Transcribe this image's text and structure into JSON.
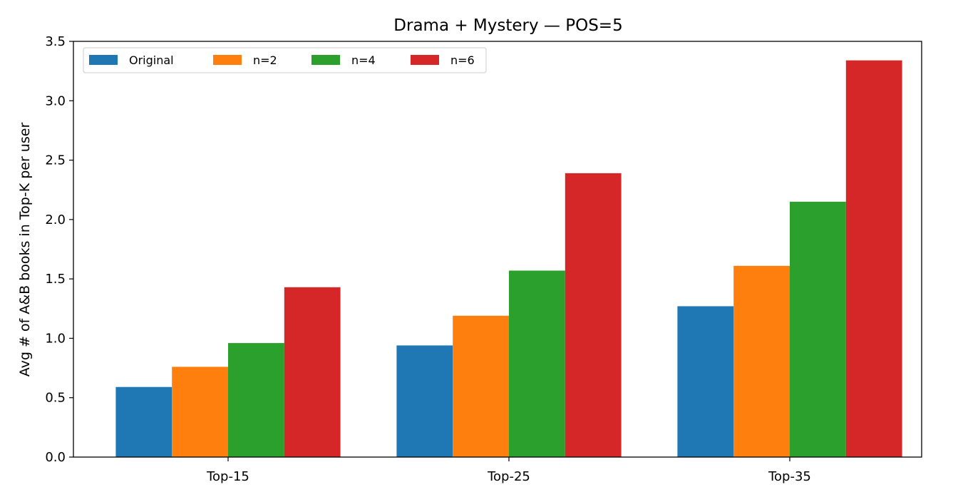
{
  "chart_data": {
    "type": "bar",
    "title": "Drama + Mystery — POS=5",
    "xlabel": "",
    "ylabel": "Avg # of A&B books in Top-K per user",
    "categories": [
      "Top-15",
      "Top-25",
      "Top-35"
    ],
    "series": [
      {
        "name": "Original",
        "color": "#1f77b4",
        "values": [
          0.59,
          0.94,
          1.27
        ]
      },
      {
        "name": "n=2",
        "color": "#ff7f0e",
        "values": [
          0.76,
          1.19,
          1.61
        ]
      },
      {
        "name": "n=4",
        "color": "#2ca02c",
        "values": [
          0.96,
          1.57,
          2.15
        ]
      },
      {
        "name": "n=6",
        "color": "#d62728",
        "values": [
          1.43,
          2.39,
          3.34
        ]
      }
    ],
    "ylim": [
      0,
      3.5
    ],
    "yticks": [
      "0.0",
      "0.5",
      "1.0",
      "1.5",
      "2.0",
      "2.5",
      "3.0",
      "3.5"
    ],
    "grid": false,
    "legend_position": "top-left"
  }
}
